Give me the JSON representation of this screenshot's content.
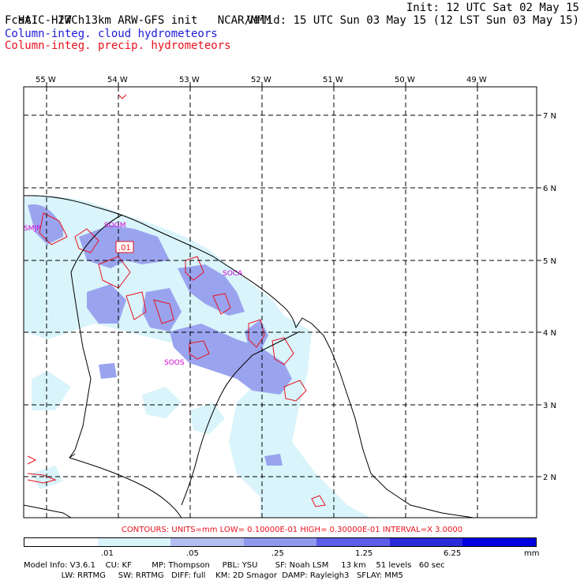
{
  "header": {
    "model": "HAIC-HIWC 13km ARW-GFS init",
    "center": "NCAR/MMM",
    "init": "Init: 12 UTC Sat 02 May 15",
    "fcst": "Fcst:   27 h",
    "valid": "Valid: 15 UTC Sun 03 May 15 (12 LST Sun 03 May 15)",
    "field_blue": "Column-integ. cloud hydrometeors",
    "field_red": "Column-integ. precip. hydrometeors"
  },
  "map": {
    "lon_labels": [
      "55 W",
      "54 W",
      "53 W",
      "52 W",
      "51 W",
      "50 W",
      "49 W"
    ],
    "lat_labels": [
      "7 N",
      "6 N",
      "5 N",
      "4 N",
      "3 N",
      "2 N"
    ],
    "stations": [
      "SMJP",
      "SOCA",
      "SOOS",
      "SOGM"
    ],
    "contour_label": ".01",
    "colors": {
      "frame": "#000000",
      "cloud_light": "#d9f4fb",
      "cloud_mid": "#9aa4ee",
      "contour": "#e8121e",
      "station": "#d400d4"
    }
  },
  "contours_text": "CONTOURS:  UNITS=mm  LOW= 0.10000E-01  HIGH= 0.30000E-01  INTERVAL=X  3.0000",
  "legend": {
    "colors": [
      "#ffffff",
      "#d9f4fb",
      "#b3bdf0",
      "#8f99ee",
      "#5d5de8",
      "#2b2bd9",
      "#0000e0"
    ],
    "labels": [
      ".01",
      ".05",
      ".25",
      "1.25",
      "6.25"
    ],
    "unit": "mm"
  },
  "model_info": {
    "line1": "Model Info: V3.6.1    CU: KF        MP: Thompson     PBL: YSU       SF: Noah LSM     13 km    51 levels   60 sec",
    "line2": "               LW: RRTMG     SW: RRTMG   DIFF: full    KM: 2D Smagor  DAMP: Rayleigh3   SFLAY: MM5"
  }
}
